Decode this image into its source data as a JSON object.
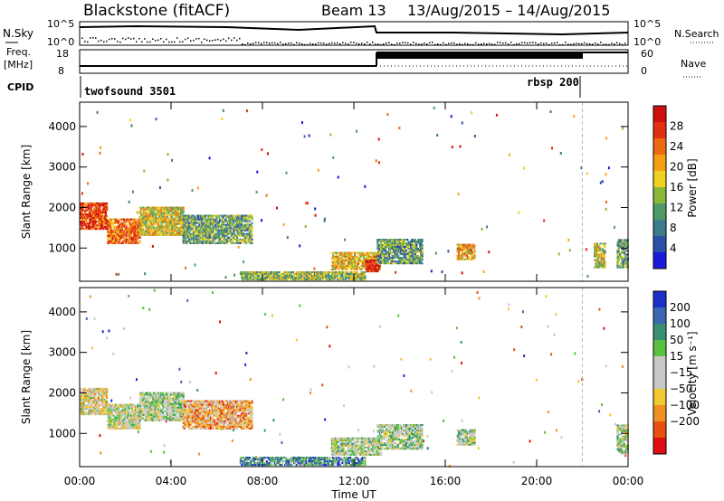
{
  "header": {
    "title": "Blackstone (fitACF)",
    "beam": "Beam 13",
    "dates": "13/Aug/2015 – 14/Aug/2015"
  },
  "status_panel": {
    "nsky_label": "N.Sky",
    "nsky_ticks": [
      "10^5",
      "10^0"
    ],
    "nsearch_label": "N.Search",
    "nsearch_ticks": [
      "10^5",
      "10^0"
    ],
    "freq_label_line1": "Freq.",
    "freq_label_line2": "[MHz]",
    "freq_ticks": [
      "18",
      "8"
    ],
    "nave_label": "Nave",
    "nave_ticks": [
      "60",
      "0"
    ],
    "cpid_label": "CPID",
    "cpid_entries": [
      {
        "name": "twofsound 3501",
        "start_hour": 0
      },
      {
        "name": "rbsp 200",
        "start_hour": 22
      }
    ]
  },
  "chart_data": [
    {
      "type": "heatmap",
      "name": "power",
      "ylabel": "Slant Range [km]",
      "xlabel": "Time UT",
      "x_ticks": [
        "00:00",
        "04:00",
        "08:00",
        "12:00",
        "16:00",
        "20:00",
        "00:00"
      ],
      "xlim_hours": [
        0,
        24
      ],
      "ylim_km": [
        180,
        4600
      ],
      "y_ticks": [
        1000,
        2000,
        3000,
        4000
      ],
      "colorbar": {
        "label": "Power [dB]",
        "ticks": [
          "4",
          "8",
          "12",
          "16",
          "20",
          "24",
          "28"
        ],
        "colors": [
          "#1a1adc",
          "#2c4fa8",
          "#3d7a8c",
          "#4e9a66",
          "#8ab83a",
          "#f0d020",
          "#f5a010",
          "#ee6a10",
          "#e03010",
          "#d01010"
        ]
      },
      "regions": [
        {
          "t": [
            0,
            1.2
          ],
          "r": [
            1450,
            2100
          ],
          "level": 0.85
        },
        {
          "t": [
            1.2,
            2.6
          ],
          "r": [
            1100,
            1700
          ],
          "level": 0.75
        },
        {
          "t": [
            2.6,
            4.5
          ],
          "r": [
            1300,
            2000
          ],
          "level": 0.55
        },
        {
          "t": [
            4.5,
            7.5
          ],
          "r": [
            1100,
            1800
          ],
          "level": 0.35
        },
        {
          "t": [
            7,
            12.5
          ],
          "r": [
            200,
            400
          ],
          "level": 0.45
        },
        {
          "t": [
            11,
            13.2
          ],
          "r": [
            450,
            900
          ],
          "level": 0.6
        },
        {
          "t": [
            12.5,
            13.1
          ],
          "r": [
            400,
            700
          ],
          "level": 0.95
        },
        {
          "t": [
            13,
            15
          ],
          "r": [
            600,
            1200
          ],
          "level": 0.35
        },
        {
          "t": [
            16.5,
            17.3
          ],
          "r": [
            700,
            1100
          ],
          "level": 0.6
        },
        {
          "t": [
            22.5,
            23
          ],
          "r": [
            500,
            1100
          ],
          "level": 0.5
        },
        {
          "t": [
            23.5,
            24
          ],
          "r": [
            500,
            1200
          ],
          "level": 0.35
        }
      ]
    },
    {
      "type": "heatmap",
      "name": "velocity",
      "ylabel": "Slant Range [km]",
      "xlabel": "Time UT",
      "x_ticks": [
        "00:00",
        "04:00",
        "08:00",
        "12:00",
        "16:00",
        "20:00",
        "00:00"
      ],
      "xlim_hours": [
        0,
        24
      ],
      "ylim_km": [
        180,
        4600
      ],
      "y_ticks": [
        1000,
        2000,
        3000,
        4000
      ],
      "colorbar": {
        "label": "Velocity [m s⁻¹]",
        "ticks": [
          "200",
          "100",
          "50",
          "15",
          "-15",
          "-50",
          "-100",
          "-200"
        ],
        "colors": [
          "#1a30c8",
          "#3c68b0",
          "#3a9070",
          "#5ac040",
          "#c8c8c8",
          "#c8c8c8",
          "#f0c830",
          "#f09020",
          "#e85010",
          "#e01010"
        ]
      },
      "regions": [
        {
          "t": [
            0,
            1.2
          ],
          "r": [
            1450,
            2100
          ],
          "level": 0.55
        },
        {
          "t": [
            1.2,
            2.6
          ],
          "r": [
            1100,
            1700
          ],
          "level": 0.5
        },
        {
          "t": [
            2.6,
            4.5
          ],
          "r": [
            1300,
            2000
          ],
          "level": 0.45
        },
        {
          "t": [
            4.5,
            7.5
          ],
          "r": [
            1100,
            1800
          ],
          "level": 0.7
        },
        {
          "t": [
            7,
            12.5
          ],
          "r": [
            200,
            400
          ],
          "level": 0.25
        },
        {
          "t": [
            11,
            13.2
          ],
          "r": [
            450,
            900
          ],
          "level": 0.45
        },
        {
          "t": [
            13,
            15
          ],
          "r": [
            600,
            1200
          ],
          "level": 0.45
        },
        {
          "t": [
            16.5,
            17.3
          ],
          "r": [
            700,
            1100
          ],
          "level": 0.45
        },
        {
          "t": [
            23.5,
            24
          ],
          "r": [
            500,
            1200
          ],
          "level": 0.45
        }
      ]
    }
  ]
}
